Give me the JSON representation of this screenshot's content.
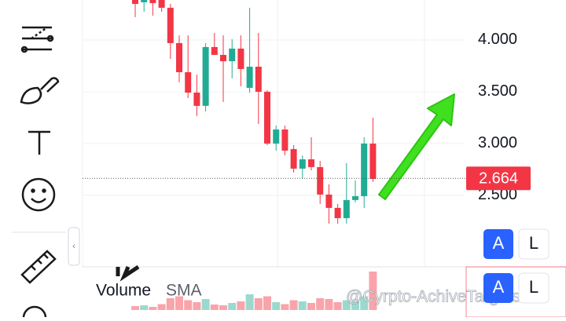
{
  "chart_data": {
    "type": "candlestick",
    "categories": [
      null,
      null,
      null,
      null,
      null,
      null,
      null,
      null,
      null,
      null,
      null,
      null,
      null,
      null,
      null,
      null,
      null,
      null,
      null,
      null,
      null,
      null,
      null,
      null,
      null,
      null,
      null,
      null
    ],
    "open": [
      4.386,
      4.364,
      4.386,
      4.386,
      4.311,
      3.97,
      3.689,
      3.492,
      3.364,
      3.932,
      3.856,
      3.795,
      3.917,
      3.538,
      3.742,
      3.5,
      3.0,
      3.136,
      2.947,
      2.758,
      2.848,
      2.773,
      2.508,
      2.379,
      2.28,
      2.455,
      2.492,
      3.0
    ],
    "high": [
      4.386,
      4.386,
      4.386,
      4.386,
      4.348,
      4.045,
      4.045,
      3.667,
      3.97,
      4.068,
      4.045,
      4.008,
      4.045,
      4.311,
      4.068,
      3.515,
      3.174,
      3.174,
      2.985,
      2.886,
      3.061,
      2.833,
      2.606,
      2.417,
      2.811,
      2.644,
      3.061,
      3.25
    ],
    "low": [
      4.22,
      4.273,
      4.235,
      4.273,
      3.818,
      3.591,
      3.439,
      3.265,
      3.311,
      3.856,
      3.402,
      3.629,
      3.553,
      3.492,
      3.189,
      2.985,
      2.932,
      2.886,
      2.72,
      2.659,
      2.742,
      2.417,
      2.227,
      2.227,
      2.227,
      2.432,
      2.379,
      2.629
    ],
    "close": [
      4.348,
      4.386,
      4.356,
      4.311,
      3.97,
      3.689,
      3.492,
      3.364,
      3.932,
      3.856,
      3.795,
      3.917,
      3.72,
      3.742,
      3.5,
      3.0,
      3.136,
      2.932,
      2.758,
      2.848,
      2.773,
      2.508,
      2.379,
      2.28,
      2.455,
      2.492,
      3.0,
      2.659
    ],
    "volume": [
      10,
      12,
      8,
      15,
      30,
      35,
      25,
      20,
      28,
      14,
      12,
      18,
      22,
      40,
      30,
      35,
      20,
      15,
      25,
      22,
      18,
      30,
      28,
      20,
      25,
      22,
      35,
      98
    ],
    "vlim": [
      0,
      100
    ],
    "up_color": "#22ab94",
    "down_color": "#f23645",
    "ylim": [
      1.81,
      4.386
    ],
    "yticks": [
      {
        "value": 2.5,
        "label": "2.500"
      },
      {
        "value": 3,
        "label": "3.000"
      },
      {
        "value": 3.5,
        "label": "3.500"
      },
      {
        "value": 4,
        "label": "4.000"
      }
    ],
    "grid": true,
    "last_price": 2.664,
    "volume_label": "Volume",
    "sma_label": "SMA"
  },
  "ui": {
    "buttons": [
      "A",
      "L",
      "A",
      "L"
    ],
    "watermark": "@Cyrpto-AchiveTargets"
  }
}
